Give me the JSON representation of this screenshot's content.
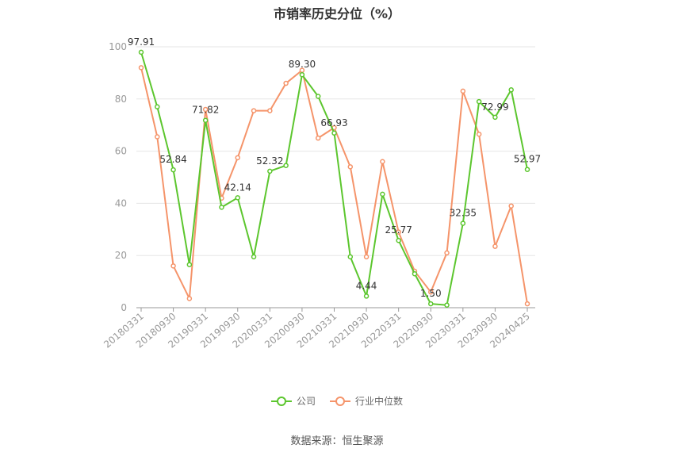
{
  "chart_data": {
    "type": "line",
    "title": "市销率历史分位（%）",
    "ylim": [
      0,
      100
    ],
    "y_ticks": [
      0,
      20,
      40,
      60,
      80,
      100
    ],
    "grid": true,
    "legend_position": "bottom",
    "x_tick_labels": [
      "20180331",
      "20180930",
      "20190331",
      "20190930",
      "20200331",
      "20200930",
      "20210331",
      "20210930",
      "20220331",
      "20220930",
      "20230331",
      "20230930",
      "20240425"
    ],
    "x_tick_positions": [
      0,
      2,
      4,
      6,
      8,
      10,
      12,
      14,
      16,
      18,
      20,
      22,
      24
    ],
    "series": [
      {
        "name": "公司",
        "color": "#5cc62e",
        "values": [
          97.91,
          77,
          52.84,
          16.5,
          71.82,
          38.5,
          42.14,
          19.5,
          52.32,
          54.5,
          89.3,
          81,
          66.93,
          19.5,
          4.44,
          43.5,
          25.77,
          13,
          1.5,
          1,
          32.35,
          79,
          72.99,
          83.5,
          52.97
        ],
        "labels": {
          "0": "97.91",
          "2": "52.84",
          "4": "71.82",
          "6": "42.14",
          "8": "52.32",
          "10": "89.30",
          "12": "66.93",
          "14": "4.44",
          "16": "25.77",
          "18": "1.50",
          "20": "32.35",
          "22": "72.99",
          "24": "52.97"
        }
      },
      {
        "name": "行业中位数",
        "color": "#f5946a",
        "values": [
          92,
          65.5,
          16,
          3.5,
          76,
          42,
          57.5,
          75.5,
          75.5,
          86,
          91,
          65,
          69,
          54,
          19.5,
          56,
          29,
          14,
          6,
          21,
          83,
          66.5,
          23.5,
          39,
          1.5
        ]
      }
    ]
  },
  "source_label": "数据来源：恒生聚源"
}
